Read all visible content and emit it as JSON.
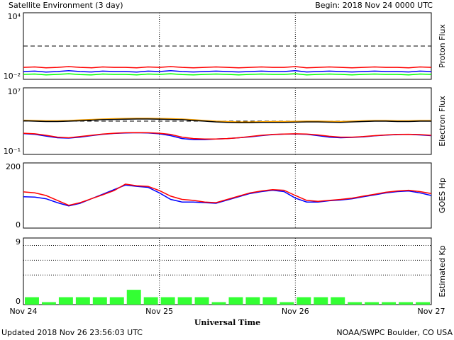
{
  "header": {
    "title": "Satellite Environment (3 day)",
    "begin": "Begin:  2018 Nov 24 0000 UTC"
  },
  "footer": {
    "updated": "Updated 2018 Nov 26 23:56:03 UTC",
    "source": "NOAA/SWPC Boulder, CO USA"
  },
  "chart_data": [
    {
      "type": "line",
      "ylabel": "Proton Flux",
      "log_scale": true,
      "ylim": [
        0.01,
        10000
      ],
      "yticks": [
        {
          "value": 10000,
          "label": "10⁴"
        },
        {
          "value": 0.01,
          "label": "10⁻²"
        }
      ],
      "thresholds": [
        10
      ],
      "xlim": [
        0,
        72
      ],
      "x": [
        0,
        2,
        4,
        6,
        8,
        10,
        12,
        14,
        16,
        18,
        20,
        22,
        24,
        26,
        28,
        30,
        32,
        34,
        36,
        38,
        40,
        42,
        44,
        46,
        48,
        50,
        52,
        54,
        56,
        58,
        60,
        62,
        64,
        66,
        68,
        70,
        72
      ],
      "series": [
        {
          "name": "red",
          "color": "#ff0000",
          "values": [
            0.12,
            0.13,
            0.11,
            0.12,
            0.14,
            0.12,
            0.11,
            0.13,
            0.12,
            0.12,
            0.11,
            0.13,
            0.12,
            0.14,
            0.12,
            0.11,
            0.12,
            0.13,
            0.12,
            0.11,
            0.12,
            0.13,
            0.12,
            0.12,
            0.14,
            0.11,
            0.12,
            0.13,
            0.12,
            0.11,
            0.12,
            0.13,
            0.12,
            0.12,
            0.11,
            0.13,
            0.12
          ]
        },
        {
          "name": "blue",
          "color": "#0000ff",
          "values": [
            0.05,
            0.055,
            0.045,
            0.05,
            0.06,
            0.05,
            0.046,
            0.055,
            0.05,
            0.05,
            0.045,
            0.055,
            0.05,
            0.06,
            0.05,
            0.046,
            0.05,
            0.055,
            0.05,
            0.046,
            0.05,
            0.055,
            0.05,
            0.05,
            0.06,
            0.046,
            0.05,
            0.055,
            0.05,
            0.046,
            0.05,
            0.055,
            0.05,
            0.05,
            0.046,
            0.055,
            0.05
          ]
        },
        {
          "name": "green",
          "color": "#00ff00",
          "values": [
            0.028,
            0.03,
            0.025,
            0.028,
            0.032,
            0.027,
            0.025,
            0.03,
            0.028,
            0.028,
            0.025,
            0.03,
            0.028,
            0.032,
            0.027,
            0.025,
            0.028,
            0.03,
            0.028,
            0.025,
            0.028,
            0.03,
            0.028,
            0.028,
            0.032,
            0.025,
            0.028,
            0.03,
            0.028,
            0.025,
            0.028,
            0.03,
            0.028,
            0.028,
            0.025,
            0.03,
            0.028
          ]
        }
      ]
    },
    {
      "type": "line",
      "ylabel": "Electron Flux",
      "log_scale": true,
      "ylim": [
        0.1,
        10000000
      ],
      "yticks": [
        {
          "value": 10000000,
          "label": "10⁷"
        },
        {
          "value": 0.1,
          "label": "10⁻¹"
        }
      ],
      "thresholds": [
        1000
      ],
      "xlim": [
        0,
        72
      ],
      "x": [
        0,
        2,
        4,
        6,
        8,
        10,
        12,
        14,
        16,
        18,
        20,
        22,
        24,
        26,
        28,
        30,
        32,
        34,
        36,
        38,
        40,
        42,
        44,
        46,
        48,
        50,
        52,
        54,
        56,
        58,
        60,
        62,
        64,
        66,
        68,
        70,
        72
      ],
      "series": [
        {
          "name": "orange",
          "color": "#ffa500",
          "values": [
            1300,
            1200,
            1100,
            1100,
            1200,
            1400,
            1600,
            1800,
            2000,
            2100,
            2200,
            2200,
            2100,
            2000,
            1800,
            1500,
            1200,
            1000,
            900,
            800,
            800,
            850,
            900,
            900,
            950,
            1000,
            1000,
            950,
            900,
            1000,
            1100,
            1200,
            1200,
            1100,
            1100,
            1200,
            1200
          ]
        },
        {
          "name": "black",
          "color": "#000000",
          "values": [
            1100,
            1000,
            900,
            900,
            1000,
            1100,
            1300,
            1500,
            1600,
            1700,
            1800,
            1800,
            1700,
            1600,
            1500,
            1200,
            1000,
            800,
            700,
            650,
            650,
            700,
            700,
            700,
            750,
            800,
            800,
            750,
            700,
            800,
            900,
            1000,
            1000,
            900,
            900,
            1000,
            1000
          ]
        },
        {
          "name": "blue",
          "color": "#0000ff",
          "values": [
            32,
            26,
            16,
            10,
            9,
            12,
            18,
            26,
            33,
            38,
            40,
            38,
            30,
            18,
            8,
            6,
            6,
            7,
            8,
            10,
            13,
            18,
            24,
            27,
            29,
            26,
            18,
            12,
            10,
            11,
            13,
            17,
            21,
            24,
            25,
            22,
            18
          ]
        },
        {
          "name": "red",
          "color": "#ff0000",
          "values": [
            35,
            30,
            20,
            12,
            10,
            14,
            20,
            28,
            35,
            40,
            42,
            40,
            35,
            25,
            12,
            8,
            7,
            7,
            8,
            10,
            14,
            20,
            25,
            28,
            30,
            28,
            22,
            15,
            12,
            12,
            14,
            18,
            22,
            25,
            26,
            24,
            20
          ]
        }
      ]
    },
    {
      "type": "line",
      "ylabel": "GOES Hp",
      "ylim": [
        0,
        200
      ],
      "yticks": [
        200,
        0
      ],
      "xlim": [
        0,
        72
      ],
      "x": [
        0,
        2,
        4,
        6,
        8,
        10,
        12,
        14,
        16,
        18,
        20,
        22,
        24,
        26,
        28,
        30,
        32,
        34,
        36,
        38,
        40,
        42,
        44,
        46,
        48,
        50,
        52,
        54,
        56,
        58,
        60,
        62,
        64,
        66,
        68,
        70,
        72
      ],
      "series": [
        {
          "name": "blue",
          "color": "#0000ff",
          "values": [
            96,
            95,
            90,
            78,
            68,
            76,
            90,
            104,
            118,
            132,
            128,
            125,
            108,
            88,
            80,
            80,
            78,
            76,
            86,
            96,
            106,
            112,
            116,
            112,
            92,
            80,
            80,
            84,
            86,
            90,
            96,
            102,
            108,
            112,
            114,
            108,
            100
          ]
        },
        {
          "name": "red",
          "color": "#ff0000",
          "values": [
            111,
            108,
            100,
            85,
            70,
            78,
            90,
            102,
            115,
            135,
            130,
            128,
            115,
            98,
            88,
            85,
            80,
            78,
            88,
            98,
            108,
            114,
            118,
            116,
            100,
            85,
            82,
            85,
            88,
            92,
            98,
            104,
            110,
            114,
            116,
            112,
            106
          ]
        }
      ]
    },
    {
      "type": "bar",
      "ylabel": "Estimated Kp",
      "ylim": [
        0,
        9
      ],
      "yticks": [
        9,
        0
      ],
      "thresholds": [
        4,
        6,
        8
      ],
      "xlabel": "Universal Time",
      "xlim": [
        0,
        72
      ],
      "xticks": [
        {
          "value": 0,
          "label": "Nov 24"
        },
        {
          "value": 24,
          "label": "Nov 25"
        },
        {
          "value": 48,
          "label": "Nov 26"
        },
        {
          "value": 72,
          "label": "Nov 27"
        }
      ],
      "bar_width": 3,
      "color": "#33ff33",
      "x": [
        1.5,
        4.5,
        7.5,
        10.5,
        13.5,
        16.5,
        19.5,
        22.5,
        25.5,
        28.5,
        31.5,
        34.5,
        37.5,
        40.5,
        43.5,
        46.5,
        49.5,
        52.5,
        55.5,
        58.5,
        61.5,
        64.5,
        67.5,
        70.5
      ],
      "values": [
        1,
        0.33,
        1,
        1,
        1,
        1,
        2,
        1,
        1,
        1,
        1,
        0.33,
        1,
        1,
        1,
        0.33,
        1,
        1,
        1,
        0.33,
        0.33,
        0.33,
        0.33,
        0.33
      ]
    }
  ]
}
